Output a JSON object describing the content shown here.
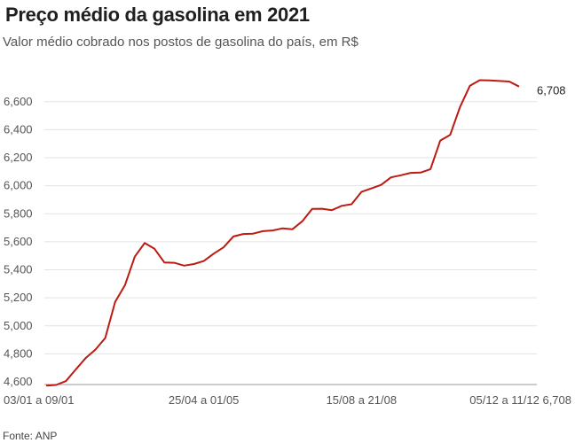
{
  "chart_data": {
    "type": "line",
    "title": "Preço médio da gasolina em 2021",
    "subtitle": "Valor médio cobrado nos postos de gasolina do país, em R$",
    "source": "Fonte: ANP",
    "xlabel": "",
    "ylabel": "",
    "ylim": [
      4.6,
      6.75
    ],
    "yticks": [
      "4,600",
      "4,800",
      "5,000",
      "5,200",
      "5,400",
      "5,600",
      "5,800",
      "6,000",
      "6,200",
      "6,400",
      "6,600"
    ],
    "ytick_values": [
      4.6,
      4.8,
      5.0,
      5.2,
      5.4,
      5.6,
      5.8,
      6.0,
      6.2,
      6.4,
      6.6
    ],
    "xtick_labels": [
      {
        "index": 0,
        "label": "03/01 a 09/01"
      },
      {
        "index": 16,
        "label": "25/04 a 01/05"
      },
      {
        "index": 32,
        "label": "15/08 a 21/08"
      },
      {
        "index": 48,
        "label": "05/12 a 11/12 6,708"
      }
    ],
    "grid": true,
    "series": [
      {
        "values": [
          4.573,
          4.578,
          4.605,
          4.688,
          4.769,
          4.83,
          4.913,
          5.17,
          5.29,
          5.494,
          5.591,
          5.55,
          5.452,
          5.45,
          5.43,
          5.441,
          5.463,
          5.515,
          5.56,
          5.638,
          5.656,
          5.658,
          5.676,
          5.681,
          5.696,
          5.69,
          5.747,
          5.835,
          5.836,
          5.826,
          5.857,
          5.868,
          5.956,
          5.981,
          6.006,
          6.06,
          6.075,
          6.092,
          6.094,
          6.119,
          6.323,
          6.363,
          6.562,
          6.713,
          6.754,
          6.752,
          6.748,
          6.744,
          6.708
        ],
        "color": "#bd1a12",
        "end_label": "6,708"
      }
    ]
  }
}
